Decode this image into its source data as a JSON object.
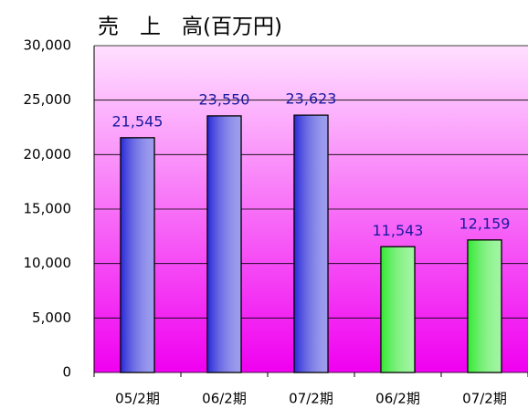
{
  "chart_data": {
    "type": "bar",
    "title": "売　上　高(百万円)",
    "categories": [
      "05/2期",
      "06/2期",
      "07/2期",
      "06/2期",
      "07/2期"
    ],
    "values": [
      21545,
      23550,
      23623,
      11543,
      12159
    ],
    "value_labels": [
      "21,545",
      "23,550",
      "23,623",
      "11,543",
      "12,159"
    ],
    "colors": [
      "#2828d8",
      "#2828d8",
      "#2828d8",
      "#30e830",
      "#30e830"
    ],
    "ylim": [
      0,
      30000
    ],
    "yticks": [
      {
        "value": 0,
        "label": "0"
      },
      {
        "value": 5000,
        "label": "5,000"
      },
      {
        "value": 10000,
        "label": "10,000"
      },
      {
        "value": 15000,
        "label": "15,000"
      },
      {
        "value": 20000,
        "label": "20,000"
      },
      {
        "value": 25000,
        "label": "25,000"
      },
      {
        "value": 30000,
        "label": "30,000"
      }
    ],
    "grid": true
  }
}
